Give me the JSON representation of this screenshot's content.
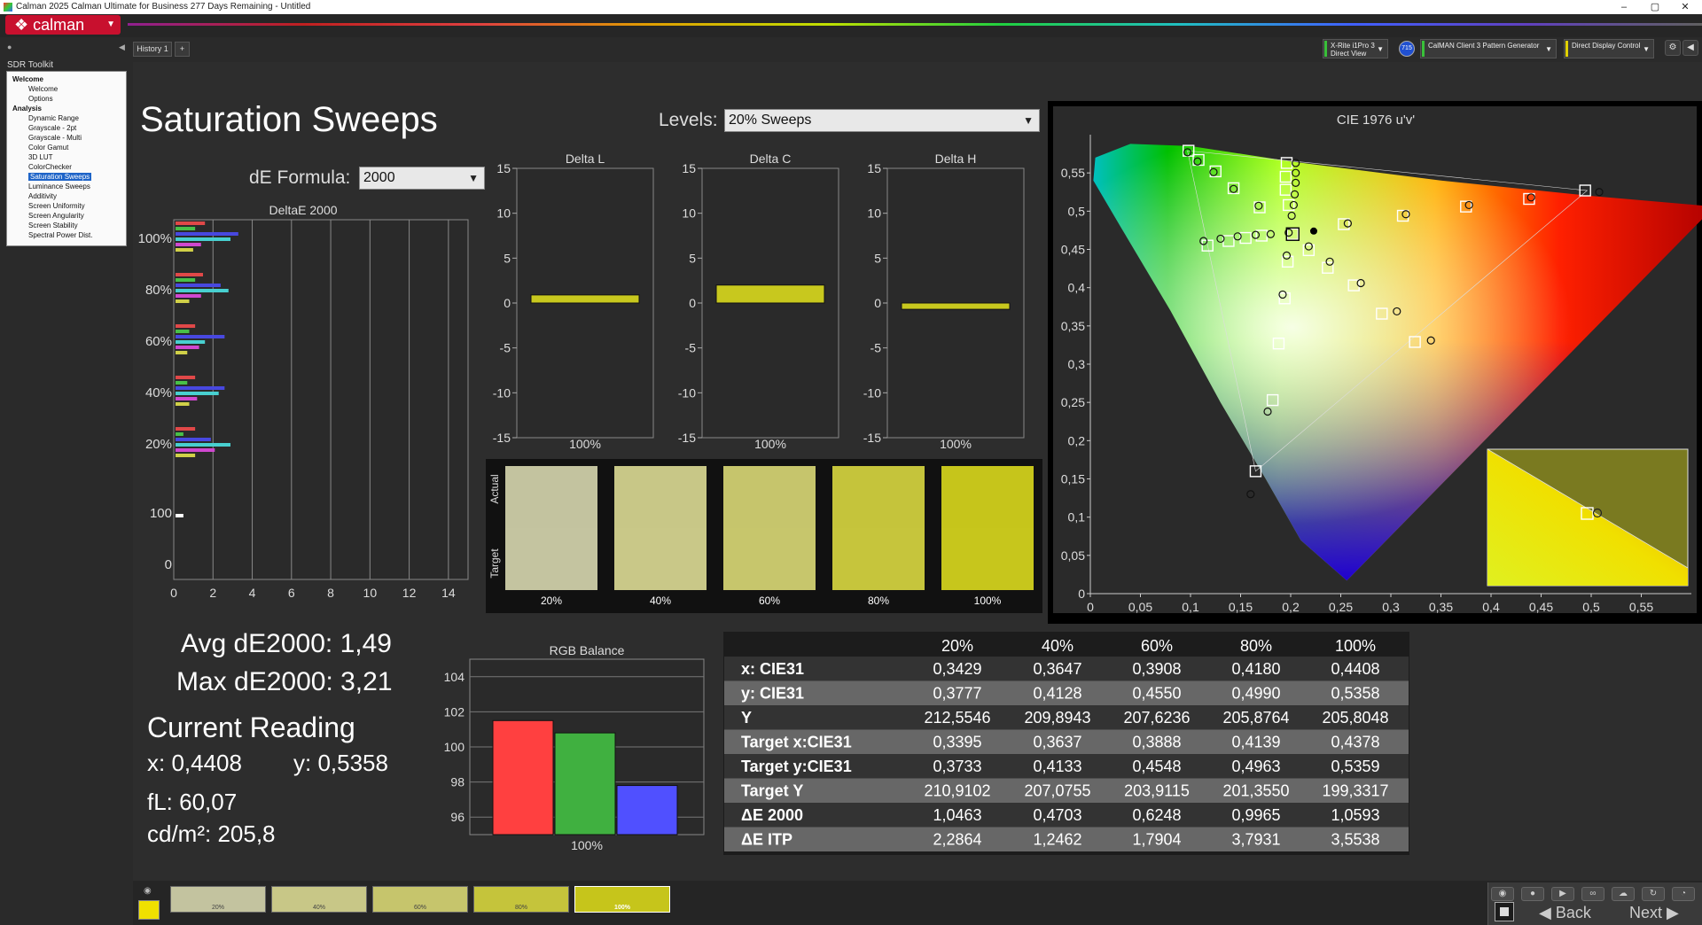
{
  "window": {
    "title": "Calman 2025 Calman Ultimate for Business 277 Days Remaining  - Untitled",
    "controls": [
      "–",
      "▢",
      "✕"
    ]
  },
  "app": {
    "logo": "calman",
    "logo_icon": "calman-logo-icon"
  },
  "history_tab": {
    "label": "History 1",
    "add_label": "+"
  },
  "devices": [
    {
      "line1": "X-Rite i1Pro 3",
      "line2": "Direct View",
      "color": "#39c039"
    },
    {
      "line1": "CalMAN Client 3 Pattern Generator",
      "line2": "",
      "color": "#39c039"
    },
    {
      "line1": "Direct Display Control",
      "line2": "",
      "color": "#e0d000"
    }
  ],
  "device_badge": "715",
  "sidebar": {
    "title": "SDR Toolkit",
    "tree": [
      {
        "label": "Welcome",
        "level": 0
      },
      {
        "label": "Welcome",
        "level": 1
      },
      {
        "label": "Options",
        "level": 1
      },
      {
        "label": "Analysis",
        "level": 0
      },
      {
        "label": "Dynamic Range",
        "level": 1
      },
      {
        "label": "Grayscale - 2pt",
        "level": 1
      },
      {
        "label": "Grayscale - Multi",
        "level": 1
      },
      {
        "label": "Color Gamut",
        "level": 1
      },
      {
        "label": "3D LUT",
        "level": 1
      },
      {
        "label": "ColorChecker",
        "level": 1
      },
      {
        "label": "Saturation Sweeps",
        "level": 1,
        "selected": true
      },
      {
        "label": "Luminance Sweeps",
        "level": 1
      },
      {
        "label": "Additivity",
        "level": 1
      },
      {
        "label": "Screen Uniformity",
        "level": 1
      },
      {
        "label": "Screen Angularity",
        "level": 1
      },
      {
        "label": "Screen Stability",
        "level": 1
      },
      {
        "label": "Spectral Power Dist.",
        "level": 1
      }
    ]
  },
  "page": {
    "title": "Saturation Sweeps",
    "levels_label": "Levels:",
    "levels_value": "20% Sweeps",
    "de_formula_label": "dE Formula:",
    "de_formula_value": "2000"
  },
  "deltae_chart": {
    "title": "DeltaE 2000",
    "x_ticks": [
      "0",
      "2",
      "4",
      "6",
      "8",
      "10",
      "12",
      "14"
    ],
    "xlim": [
      0,
      15
    ],
    "groups": [
      {
        "label": "100%",
        "values": [
          1.5,
          1.0,
          3.2,
          2.8,
          1.3,
          0.9
        ]
      },
      {
        "label": "80%",
        "values": [
          1.4,
          1.0,
          2.3,
          2.7,
          1.3,
          0.7
        ]
      },
      {
        "label": "60%",
        "values": [
          1.0,
          0.7,
          2.5,
          1.5,
          1.2,
          0.6
        ]
      },
      {
        "label": "40%",
        "values": [
          1.0,
          0.6,
          2.5,
          2.2,
          1.1,
          0.7
        ]
      },
      {
        "label": "20%",
        "values": [
          1.0,
          0.4,
          1.8,
          2.8,
          2.0,
          1.0
        ]
      },
      {
        "label": "100",
        "values": [
          0.4
        ]
      },
      {
        "label": "0",
        "values": []
      }
    ],
    "colors": [
      "#e04848",
      "#48c048",
      "#4848e0",
      "#48d0d0",
      "#d048d0",
      "#d0d048"
    ]
  },
  "delta_charts": [
    {
      "title": "Delta L",
      "value": 0.9,
      "xlabel": "100%"
    },
    {
      "title": "Delta C",
      "value": 2.0,
      "xlabel": "100%"
    },
    {
      "title": "Delta H",
      "value": -0.7,
      "xlabel": "100%"
    }
  ],
  "delta_y_ticks": [
    "15",
    "10",
    "5",
    "0",
    "-5",
    "-10",
    "-15"
  ],
  "swatches": {
    "actual_label": "Actual",
    "target_label": "Target",
    "items": [
      {
        "label": "20%",
        "actual": "#c3c39f",
        "target": "#c4c4a0"
      },
      {
        "label": "40%",
        "actual": "#c8c787",
        "target": "#c9c888"
      },
      {
        "label": "60%",
        "actual": "#c6c56c",
        "target": "#c7c66c"
      },
      {
        "label": "80%",
        "actual": "#c5c43b",
        "target": "#c6c53c"
      },
      {
        "label": "100%",
        "actual": "#c6c51b",
        "target": "#c7c61c"
      }
    ]
  },
  "summary": {
    "avg": "Avg dE2000: 1,49",
    "max": "Max dE2000: 3,21",
    "current_reading": "Current Reading",
    "x": "x: 0,4408",
    "y": "y: 0,5358",
    "fl": "fL: 60,07",
    "cdm2": "cd/m²: 205,8"
  },
  "rgb_balance": {
    "title": "RGB Balance",
    "y_ticks": [
      "104",
      "102",
      "100",
      "98",
      "96"
    ],
    "ylim": [
      95,
      105
    ],
    "values": [
      101.5,
      100.8,
      97.8
    ],
    "colors": [
      "#ff4040",
      "#40b040",
      "#5050ff"
    ],
    "xlabel": "100%"
  },
  "table": {
    "columns": [
      "",
      "20%",
      "40%",
      "60%",
      "80%",
      "100%"
    ],
    "rows": [
      [
        "x: CIE31",
        "0,3429",
        "0,3647",
        "0,3908",
        "0,4180",
        "0,4408"
      ],
      [
        "y: CIE31",
        "0,3777",
        "0,4128",
        "0,4550",
        "0,4990",
        "0,5358"
      ],
      [
        "Y",
        "212,5546",
        "209,8943",
        "207,6236",
        "205,8764",
        "205,8048"
      ],
      [
        "Target x:CIE31",
        "0,3395",
        "0,3637",
        "0,3888",
        "0,4139",
        "0,4378"
      ],
      [
        "Target y:CIE31",
        "0,3733",
        "0,4133",
        "0,4548",
        "0,4963",
        "0,5359"
      ],
      [
        "Target Y",
        "210,9102",
        "207,0755",
        "203,9115",
        "201,3550",
        "199,3317"
      ],
      [
        "ΔE 2000",
        "1,0463",
        "0,4703",
        "0,6248",
        "0,9965",
        "1,0593"
      ],
      [
        "ΔE ITP",
        "2,2864",
        "1,2462",
        "1,7904",
        "3,7931",
        "3,5538"
      ]
    ]
  },
  "chart_data": {
    "type": "scatter",
    "title": "CIE 1976 u'v'",
    "x_ticks": [
      "0",
      "0,05",
      "0,1",
      "0,15",
      "0,2",
      "0,25",
      "0,3",
      "0,35",
      "0,4",
      "0,45",
      "0,5",
      "0,55"
    ],
    "y_ticks": [
      "0",
      "0,05",
      "0,1",
      "0,15",
      "0,2",
      "0,25",
      "0,3",
      "0,35",
      "0,4",
      "0,45",
      "0,5",
      "0,55"
    ],
    "xlim": [
      0,
      0.6
    ],
    "ylim": [
      0,
      0.6
    ],
    "targets": [
      [
        0.098,
        0.579
      ],
      [
        0.108,
        0.567
      ],
      [
        0.125,
        0.552
      ],
      [
        0.143,
        0.53
      ],
      [
        0.169,
        0.505
      ],
      [
        0.202,
        0.47
      ],
      [
        0.196,
        0.563
      ],
      [
        0.195,
        0.545
      ],
      [
        0.195,
        0.528
      ],
      [
        0.198,
        0.508
      ],
      [
        0.438,
        0.516
      ],
      [
        0.375,
        0.506
      ],
      [
        0.312,
        0.494
      ],
      [
        0.253,
        0.483
      ],
      [
        0.494,
        0.527
      ],
      [
        0.324,
        0.329
      ],
      [
        0.291,
        0.366
      ],
      [
        0.263,
        0.403
      ],
      [
        0.237,
        0.426
      ],
      [
        0.218,
        0.449
      ],
      [
        0.117,
        0.455
      ],
      [
        0.138,
        0.461
      ],
      [
        0.155,
        0.465
      ],
      [
        0.171,
        0.468
      ],
      [
        0.165,
        0.16
      ],
      [
        0.182,
        0.253
      ],
      [
        0.188,
        0.327
      ],
      [
        0.194,
        0.386
      ],
      [
        0.197,
        0.434
      ],
      [
        0.496,
        0.101
      ]
    ],
    "measured": [
      [
        0.097,
        0.577
      ],
      [
        0.107,
        0.565
      ],
      [
        0.123,
        0.551
      ],
      [
        0.143,
        0.529
      ],
      [
        0.168,
        0.507
      ],
      [
        0.198,
        0.472
      ],
      [
        0.205,
        0.563
      ],
      [
        0.205,
        0.55
      ],
      [
        0.205,
        0.537
      ],
      [
        0.204,
        0.522
      ],
      [
        0.203,
        0.508
      ],
      [
        0.201,
        0.494
      ],
      [
        0.44,
        0.518
      ],
      [
        0.378,
        0.508
      ],
      [
        0.315,
        0.496
      ],
      [
        0.257,
        0.484
      ],
      [
        0.508,
        0.525
      ],
      [
        0.34,
        0.331
      ],
      [
        0.306,
        0.369
      ],
      [
        0.27,
        0.406
      ],
      [
        0.239,
        0.434
      ],
      [
        0.218,
        0.454
      ],
      [
        0.113,
        0.461
      ],
      [
        0.13,
        0.464
      ],
      [
        0.147,
        0.467
      ],
      [
        0.165,
        0.469
      ],
      [
        0.18,
        0.47
      ],
      [
        0.16,
        0.13
      ],
      [
        0.177,
        0.238
      ],
      [
        0.192,
        0.391
      ],
      [
        0.196,
        0.442
      ],
      [
        0.51,
        0.101
      ]
    ],
    "white_point": [
      0.223,
      0.474
    ]
  },
  "bottom": {
    "swatches": [
      {
        "label": "20%",
        "color": "#c3c39f"
      },
      {
        "label": "40%",
        "color": "#c8c787"
      },
      {
        "label": "60%",
        "color": "#c6c56c"
      },
      {
        "label": "80%",
        "color": "#c5c43b"
      },
      {
        "label": "100%",
        "color": "#c6c51b"
      }
    ],
    "current_color": "#f0e000",
    "back": "Back",
    "next": "Next"
  }
}
